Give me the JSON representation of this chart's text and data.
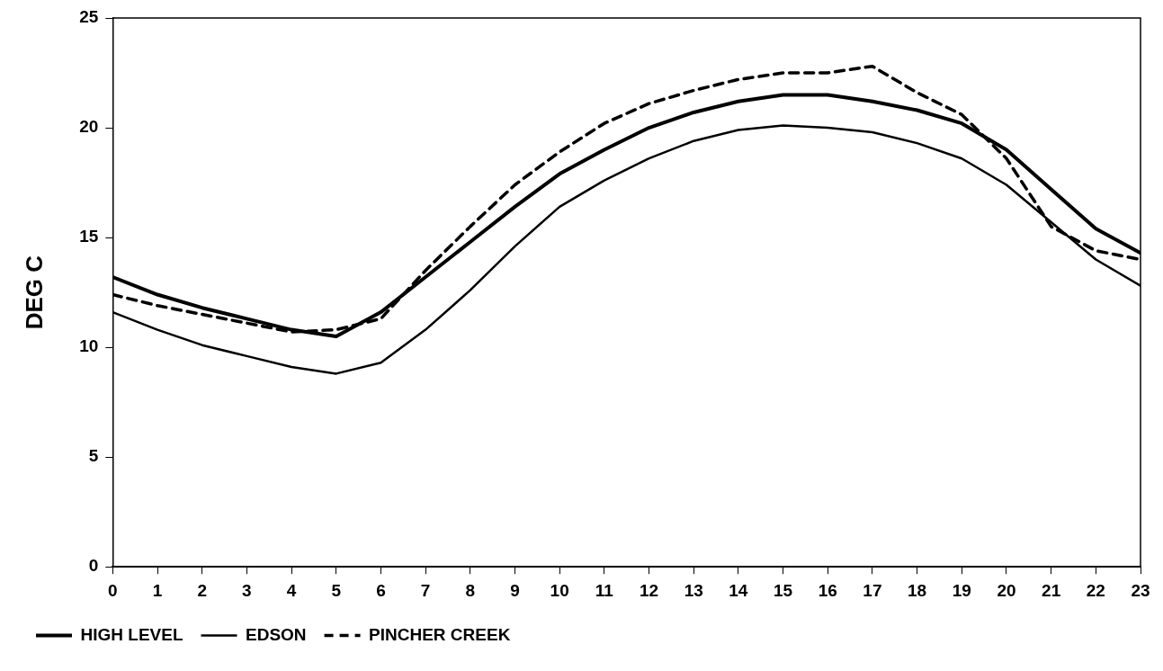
{
  "chart_data": {
    "type": "line",
    "ylabel": "DEG C",
    "x": [
      0,
      1,
      2,
      3,
      4,
      5,
      6,
      7,
      8,
      9,
      10,
      11,
      12,
      13,
      14,
      15,
      16,
      17,
      18,
      19,
      20,
      21,
      22,
      23
    ],
    "series": [
      {
        "name": "HIGH LEVEL",
        "color": "#000000",
        "line_style": "solid",
        "values": [
          13.2,
          12.4,
          11.8,
          11.3,
          10.8,
          10.5,
          11.6,
          13.2,
          14.8,
          16.4,
          17.9,
          19.0,
          20.0,
          20.7,
          21.2,
          21.5,
          21.5,
          21.2,
          20.8,
          20.2,
          19.0,
          17.2,
          15.4,
          14.3
        ]
      },
      {
        "name": "EDSON",
        "color": "#000000",
        "line_style": "solid",
        "values": [
          11.6,
          10.8,
          10.1,
          9.6,
          9.1,
          8.8,
          9.3,
          10.8,
          12.6,
          14.6,
          16.4,
          17.6,
          18.6,
          19.4,
          19.9,
          20.1,
          20.0,
          19.8,
          19.3,
          18.6,
          17.4,
          15.7,
          14.0,
          12.8
        ]
      },
      {
        "name": "PINCHER CREEK",
        "color": "#000000",
        "line_style": "dashed",
        "values": [
          12.4,
          11.9,
          11.5,
          11.1,
          10.7,
          10.8,
          11.3,
          13.5,
          15.5,
          17.4,
          18.9,
          20.2,
          21.1,
          21.7,
          22.2,
          22.5,
          22.5,
          22.8,
          21.6,
          20.6,
          18.6,
          15.5,
          14.4,
          14.0
        ]
      }
    ],
    "xlim": [
      0,
      23
    ],
    "xticks": [
      0,
      1,
      2,
      3,
      4,
      5,
      6,
      7,
      8,
      9,
      10,
      11,
      12,
      13,
      14,
      15,
      16,
      17,
      18,
      19,
      20,
      21,
      22,
      23
    ],
    "ylim": [
      0,
      25
    ],
    "yticks": [
      0,
      5,
      10,
      15,
      20,
      25
    ],
    "grid": false,
    "legend": "bottom left",
    "marker": "none"
  }
}
